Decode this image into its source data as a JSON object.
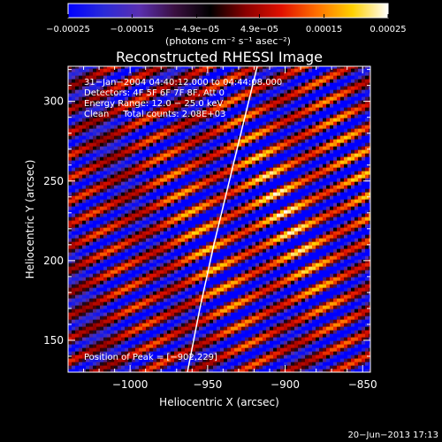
{
  "chart_data": {
    "type": "heatmap",
    "title": "Reconstructed RHESSI Image",
    "xlabel": "Heliocentric X (arcsec)",
    "ylabel": "Heliocentric Y (arcsec)",
    "xlim": [
      -1040,
      -845
    ],
    "ylim": [
      130,
      322
    ],
    "x_ticks": [
      -1000,
      -950,
      -900,
      -850
    ],
    "x_tick_labels": [
      "−1000",
      "−950",
      "−900",
      "−850"
    ],
    "y_ticks": [
      150,
      200,
      250,
      300
    ],
    "y_tick_labels": [
      "150",
      "200",
      "250",
      "300"
    ],
    "colorbar": {
      "min": -0.00025,
      "max": 0.00025,
      "ticks": [
        -0.00025,
        -0.00015,
        -4.9e-05,
        4.9e-05,
        0.00015,
        0.00025
      ],
      "tick_labels": [
        "−0.00025",
        "−0.00015",
        "−4.9e−05",
        "4.9e−05",
        "0.00015",
        "0.00025"
      ],
      "unit_label": "(photons cm⁻² s⁻¹ asec⁻²)",
      "colors": [
        "#0000ff",
        "#2a2ad8",
        "#5a2fb0",
        "#3a1040",
        "#000000",
        "#8a0000",
        "#e01000",
        "#ff7000",
        "#ffd000",
        "#ffffff"
      ]
    },
    "info_lines": [
      "31−Jan−2004 04:40:12.000 to 04:44:08.000",
      "Detectors: 4F 5F 6F 7F 8F, Att 0",
      "Energy Range: 12.0 − 25.0 keV",
      "Clean     Total counts: 2.08E+03"
    ],
    "peak_label": "Position of Peak = [−902,229]",
    "peak": [
      -902,
      229
    ],
    "limb_curve": [
      [
        -963,
        130
      ],
      [
        -955,
        170
      ],
      [
        -946,
        210
      ],
      [
        -936,
        250
      ],
      [
        -926,
        290
      ],
      [
        -918,
        322
      ]
    ],
    "fringe_angle_deg": 25,
    "fringe_period": 13
  },
  "timestamp": "20−Jun−2013 17:13"
}
